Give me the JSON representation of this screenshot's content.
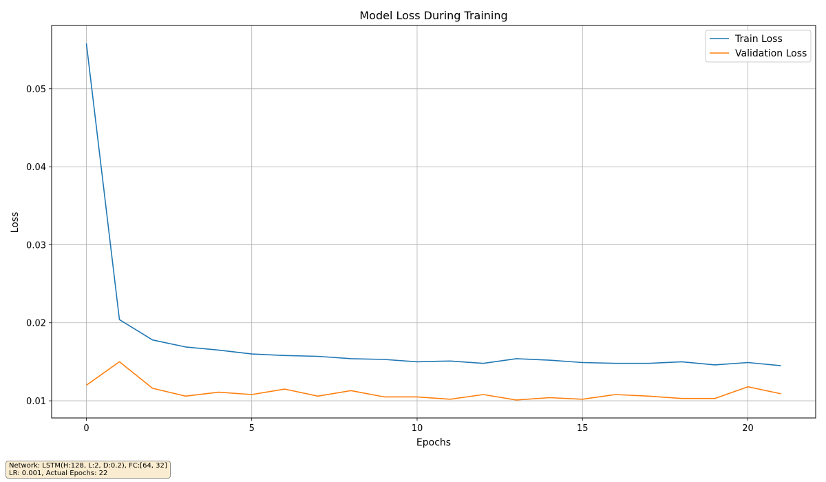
{
  "chart_data": {
    "type": "line",
    "title": "Model Loss During Training",
    "xlabel": "Epochs",
    "ylabel": "Loss",
    "xlim": [
      -1.05,
      22.05
    ],
    "ylim": [
      0.0078,
      0.0581
    ],
    "xticks": [
      0,
      5,
      10,
      15,
      20
    ],
    "yticks": [
      0.01,
      0.02,
      0.03,
      0.04,
      0.05
    ],
    "xtick_labels": [
      "0",
      "5",
      "10",
      "15",
      "20"
    ],
    "ytick_labels": [
      "0.01",
      "0.02",
      "0.03",
      "0.04",
      "0.05"
    ],
    "grid": true,
    "legend_position": "top-right",
    "x": [
      0,
      1,
      2,
      3,
      4,
      5,
      6,
      7,
      8,
      9,
      10,
      11,
      12,
      13,
      14,
      15,
      16,
      17,
      18,
      19,
      20,
      21
    ],
    "series": [
      {
        "name": "Train Loss",
        "color": "#1f77b4",
        "values": [
          0.0558,
          0.0204,
          0.0178,
          0.0169,
          0.0165,
          0.016,
          0.0158,
          0.0157,
          0.0154,
          0.0153,
          0.015,
          0.0151,
          0.0148,
          0.0154,
          0.0152,
          0.0149,
          0.0148,
          0.0148,
          0.015,
          0.0146,
          0.0149,
          0.0145
        ]
      },
      {
        "name": "Validation Loss",
        "color": "#ff7f0e",
        "values": [
          0.012,
          0.015,
          0.0116,
          0.0106,
          0.0111,
          0.0108,
          0.0115,
          0.0106,
          0.0113,
          0.0105,
          0.0105,
          0.0102,
          0.0108,
          0.0101,
          0.0104,
          0.0102,
          0.0108,
          0.0106,
          0.0103,
          0.0103,
          0.0118,
          0.0109
        ]
      }
    ]
  },
  "info": {
    "line1": "Network: LSTM(H:128, L:2, D:0.2), FC:[64, 32]",
    "line2": "LR: 0.001, Actual Epochs: 22"
  }
}
